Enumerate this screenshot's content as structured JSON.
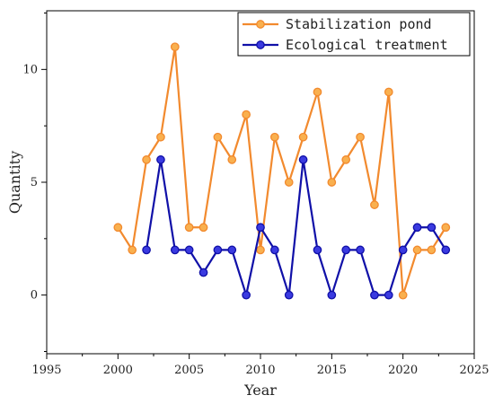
{
  "chart_data": {
    "type": "line",
    "xlabel": "Year",
    "ylabel": "Quantity",
    "xlim": [
      1995,
      2025
    ],
    "ylim": [
      -2.6,
      12.6
    ],
    "xticks": [
      1995,
      2000,
      2005,
      2010,
      2015,
      2020,
      2025
    ],
    "yticks": [
      0,
      5,
      10
    ],
    "legend_position": "top-right",
    "grid": false,
    "series": [
      {
        "name": "Stabilization pond",
        "color": "#F28A2E",
        "marker_fill": "#F9B04F",
        "x": [
          2000,
          2001,
          2002,
          2003,
          2004,
          2005,
          2006,
          2007,
          2008,
          2009,
          2010,
          2011,
          2012,
          2013,
          2014,
          2015,
          2016,
          2017,
          2018,
          2019,
          2020,
          2021,
          2022,
          2023
        ],
        "y": [
          3,
          2,
          6,
          7,
          11,
          3,
          3,
          7,
          6,
          8,
          2,
          7,
          5,
          7,
          9,
          5,
          6,
          7,
          4,
          9,
          0,
          2,
          2,
          3
        ]
      },
      {
        "name": "Ecological treatment",
        "color": "#1010A8",
        "marker_fill": "#3A3AE0",
        "x": [
          2002,
          2003,
          2004,
          2005,
          2006,
          2007,
          2008,
          2009,
          2010,
          2011,
          2012,
          2013,
          2014,
          2015,
          2016,
          2017,
          2018,
          2019,
          2020,
          2021,
          2022,
          2023
        ],
        "y": [
          2,
          6,
          2,
          2,
          1,
          2,
          2,
          0,
          3,
          2,
          0,
          6,
          2,
          0,
          2,
          2,
          0,
          0,
          2,
          3,
          3,
          2
        ]
      }
    ]
  }
}
